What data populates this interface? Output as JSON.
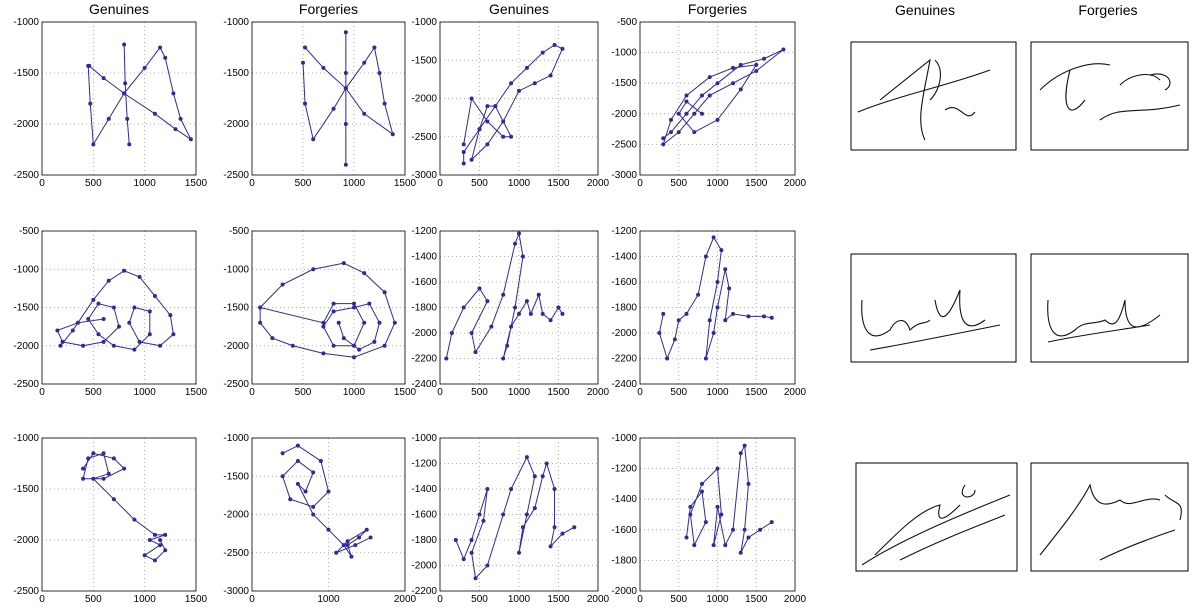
{
  "chart_data": [
    {
      "type": "line",
      "title": "Genuines",
      "xlim": [
        0,
        1500
      ],
      "xticks": [
        0,
        500,
        1000,
        1500
      ],
      "ylim": [
        -2500,
        -1000
      ],
      "yticks": [
        -2500,
        -2000,
        -1500,
        -1000
      ],
      "grid": true,
      "series": [
        {
          "color": "#2b2b9e",
          "x": [
            800,
            810,
            830,
            850,
            null,
            450,
            470,
            500,
            650,
            800,
            1000,
            1150,
            1200,
            1280,
            1350,
            1450,
            1300,
            1100,
            800,
            600,
            460
          ],
          "values": [
            -1220,
            -1600,
            -1950,
            -2200,
            null,
            -1430,
            -1800,
            -2200,
            -1950,
            -1700,
            -1450,
            -1250,
            -1350,
            -1700,
            -1950,
            -2150,
            -2050,
            -1900,
            -1700,
            -1550,
            -1430
          ]
        }
      ]
    },
    {
      "type": "line",
      "title": "Forgeries",
      "xlim": [
        0,
        1500
      ],
      "xticks": [
        0,
        500,
        1000,
        1500
      ],
      "ylim": [
        -2500,
        -1000
      ],
      "yticks": [
        -2500,
        -2000,
        -1500,
        -1000
      ],
      "grid": true,
      "series": [
        {
          "color": "#2b2b9e",
          "x": [
            920,
            920,
            920,
            920,
            null,
            500,
            520,
            600,
            800,
            920,
            1100,
            1200,
            1250,
            1300,
            1380,
            1100,
            920,
            700,
            520
          ],
          "values": [
            -1100,
            -1500,
            -2000,
            -2400,
            null,
            -1400,
            -1800,
            -2150,
            -1850,
            -1650,
            -1400,
            -1250,
            -1500,
            -1800,
            -2100,
            -1900,
            -1650,
            -1450,
            -1250
          ]
        }
      ]
    },
    {
      "type": "line",
      "title": "Genuines",
      "xlim": [
        0,
        2000
      ],
      "xticks": [
        0,
        500,
        1000,
        1500,
        2000
      ],
      "ylim": [
        -3000,
        -1000
      ],
      "yticks": [
        -3000,
        -2500,
        -2000,
        -1500,
        -1000
      ],
      "grid": true,
      "series": [
        {
          "color": "#2b2b9e",
          "x": [
            300,
            300,
            500,
            700,
            900,
            1100,
            1300,
            1450,
            1550,
            1400,
            1200,
            1000,
            800,
            600,
            400,
            500,
            600,
            700,
            900,
            800,
            600,
            400,
            300
          ],
          "values": [
            -2850,
            -2700,
            -2400,
            -2100,
            -1800,
            -1600,
            -1400,
            -1300,
            -1350,
            -1700,
            -1800,
            -1900,
            -2300,
            -2600,
            -2800,
            -2400,
            -2100,
            -2100,
            -2500,
            -2500,
            -2300,
            -2000,
            -2600
          ]
        }
      ]
    },
    {
      "type": "line",
      "title": "Forgeries",
      "xlim": [
        0,
        2000
      ],
      "xticks": [
        0,
        500,
        1000,
        1500,
        2000
      ],
      "ylim": [
        -3000,
        -500
      ],
      "yticks": [
        -3000,
        -2500,
        -2000,
        -1500,
        -1000,
        -500
      ],
      "grid": true,
      "series": [
        {
          "color": "#2b2b9e",
          "x": [
            300,
            400,
            600,
            800,
            1000,
            1300,
            1600,
            1850,
            1500,
            1200,
            900,
            700,
            500,
            300,
            400,
            600,
            900,
            1200,
            1500,
            1300,
            1000,
            700,
            500,
            600,
            800
          ],
          "values": [
            -2400,
            -2300,
            -2000,
            -1700,
            -1500,
            -1200,
            -1100,
            -950,
            -1300,
            -1500,
            -1700,
            -2000,
            -2300,
            -2500,
            -2100,
            -1700,
            -1400,
            -1250,
            -1200,
            -1600,
            -2100,
            -2300,
            -2000,
            -1800,
            -2000
          ]
        }
      ]
    },
    {
      "type": "line",
      "xlim": [
        0,
        1500
      ],
      "xticks": [
        0,
        500,
        1000,
        1500
      ],
      "ylim": [
        -2500,
        -500
      ],
      "yticks": [
        -2500,
        -2000,
        -1500,
        -1000,
        -500
      ],
      "grid": true,
      "series": [
        {
          "color": "#2b2b9e",
          "x": [
            180,
            300,
            500,
            650,
            800,
            950,
            1100,
            1250,
            1280,
            1150,
            950,
            850,
            900,
            1050,
            1050,
            900,
            700,
            550,
            450,
            550,
            700,
            750,
            600,
            400,
            200,
            150,
            350,
            600
          ],
          "values": [
            -2000,
            -1800,
            -1400,
            -1150,
            -1020,
            -1100,
            -1350,
            -1600,
            -1850,
            -2000,
            -1950,
            -1700,
            -1500,
            -1550,
            -1850,
            -2050,
            -2000,
            -1850,
            -1650,
            -1450,
            -1500,
            -1750,
            -1950,
            -2000,
            -1950,
            -1800,
            -1700,
            -1650
          ]
        }
      ]
    },
    {
      "type": "line",
      "xlim": [
        0,
        1500
      ],
      "xticks": [
        0,
        500,
        1000,
        1500
      ],
      "ylim": [
        -2500,
        -500
      ],
      "yticks": [
        -2500,
        -2000,
        -1500,
        -1000,
        -500
      ],
      "grid": true,
      "series": [
        {
          "color": "#2b2b9e",
          "x": [
            80,
            300,
            600,
            900,
            1100,
            1300,
            1400,
            1300,
            1000,
            700,
            400,
            200,
            80,
            80,
            700,
            800,
            1000,
            1100,
            1000,
            800,
            700,
            800,
            1000,
            1150,
            1250,
            1200,
            1050,
            900,
            850
          ],
          "values": [
            -1500,
            -1200,
            -1000,
            -920,
            -1050,
            -1300,
            -1700,
            -2000,
            -2150,
            -2100,
            -2000,
            -1900,
            -1700,
            -1500,
            -1700,
            -1450,
            -1450,
            -1700,
            -2000,
            -2000,
            -1750,
            -1550,
            -1500,
            -1450,
            -1700,
            -1950,
            -2050,
            -1900,
            -1700
          ]
        }
      ]
    },
    {
      "type": "line",
      "xlim": [
        0,
        2000
      ],
      "xticks": [
        0,
        500,
        1000,
        1500,
        2000
      ],
      "ylim": [
        -2400,
        -1200
      ],
      "yticks": [
        -2400,
        -2200,
        -2000,
        -1800,
        -1600,
        -1400,
        -1200
      ],
      "grid": true,
      "series": [
        {
          "color": "#2b2b9e",
          "x": [
            80,
            150,
            300,
            500,
            600,
            400,
            450,
            650,
            800,
            950,
            1000,
            1050,
            950,
            850,
            800,
            900,
            1000,
            1100,
            1150,
            1250,
            1300,
            1400,
            1500,
            1550
          ],
          "values": [
            -2200,
            -2000,
            -1800,
            -1650,
            -1750,
            -2000,
            -2150,
            -1950,
            -1700,
            -1300,
            -1220,
            -1400,
            -1800,
            -2100,
            -2200,
            -1950,
            -1850,
            -1750,
            -1850,
            -1700,
            -1850,
            -1900,
            -1800,
            -1850
          ]
        }
      ]
    },
    {
      "type": "line",
      "xlim": [
        0,
        2000
      ],
      "xticks": [
        0,
        500,
        1000,
        1500,
        2000
      ],
      "ylim": [
        -2400,
        -1200
      ],
      "yticks": [
        -2400,
        -2200,
        -2000,
        -1800,
        -1600,
        -1400,
        -1200
      ],
      "grid": true,
      "series": [
        {
          "color": "#2b2b9e",
          "x": [
            300,
            250,
            350,
            450,
            500,
            600,
            750,
            850,
            950,
            1050,
            1000,
            900,
            850,
            950,
            1000,
            1100,
            1150,
            1100,
            1200,
            1400,
            1600,
            1700
          ],
          "values": [
            -1850,
            -2000,
            -2200,
            -2050,
            -1900,
            -1850,
            -1700,
            -1400,
            -1250,
            -1350,
            -1600,
            -1900,
            -2200,
            -2000,
            -1800,
            -1500,
            -1650,
            -1900,
            -1850,
            -1870,
            -1870,
            -1880
          ]
        }
      ]
    },
    {
      "type": "line",
      "xlim": [
        0,
        1500
      ],
      "xticks": [
        0,
        500,
        1000,
        1500
      ],
      "ylim": [
        -2500,
        -1000
      ],
      "yticks": [
        -2500,
        -2000,
        -1500,
        -1000
      ],
      "grid": true,
      "series": [
        {
          "color": "#2b2b9e",
          "x": [
            400,
            500,
            700,
            800,
            600,
            400,
            450,
            600,
            650,
            500,
            700,
            900,
            1100,
            1200,
            1050,
            1150,
            1000,
            1100,
            1200,
            1150
          ],
          "values": [
            -1300,
            -1150,
            -1200,
            -1300,
            -1400,
            -1400,
            -1200,
            -1150,
            -1350,
            -1400,
            -1600,
            -1800,
            -1950,
            -1950,
            -2000,
            -2050,
            -2150,
            -2200,
            -2100,
            -2000
          ]
        }
      ]
    },
    {
      "type": "line",
      "xlim": [
        0,
        2000
      ],
      "xticks": [
        0,
        1000,
        2000
      ],
      "ylim": [
        -3000,
        -1000
      ],
      "yticks": [
        -3000,
        -2500,
        -2000,
        -1500,
        -1000
      ],
      "grid": true,
      "series": [
        {
          "color": "#2b2b9e",
          "x": [
            400,
            600,
            900,
            1000,
            800,
            500,
            400,
            600,
            800,
            700,
            600,
            800,
            1000,
            1200,
            1300,
            1250,
            1400,
            1500,
            1250,
            1100,
            1350,
            1550
          ],
          "values": [
            -1200,
            -1100,
            -1300,
            -1700,
            -1900,
            -1800,
            -1500,
            -1300,
            -1450,
            -1700,
            -1600,
            -2000,
            -2200,
            -2400,
            -2550,
            -2400,
            -2300,
            -2200,
            -2350,
            -2500,
            -2400,
            -2300
          ]
        }
      ]
    },
    {
      "type": "line",
      "xlim": [
        0,
        2000
      ],
      "xticks": [
        0,
        500,
        1000,
        1500,
        2000
      ],
      "ylim": [
        -2200,
        -1000
      ],
      "yticks": [
        -2200,
        -2000,
        -1800,
        -1600,
        -1400,
        -1200,
        -1000
      ],
      "grid": true,
      "series": [
        {
          "color": "#2b2b9e",
          "x": [
            200,
            300,
            400,
            500,
            600,
            550,
            400,
            450,
            600,
            800,
            900,
            1100,
            1200,
            1100,
            1000,
            1050,
            1200,
            1300,
            1350,
            1450,
            1450,
            1400,
            1550,
            1700
          ],
          "values": [
            -1800,
            -1950,
            -1800,
            -1600,
            -1400,
            -1650,
            -1900,
            -2100,
            -2000,
            -1600,
            -1400,
            -1150,
            -1300,
            -1600,
            -1900,
            -1700,
            -1550,
            -1300,
            -1200,
            -1400,
            -1700,
            -1850,
            -1750,
            -1700
          ]
        }
      ]
    },
    {
      "type": "line",
      "xlim": [
        0,
        2000
      ],
      "xticks": [
        0,
        500,
        1000,
        1500,
        2000
      ],
      "ylim": [
        -2000,
        -1000
      ],
      "yticks": [
        -2000,
        -1800,
        -1600,
        -1400,
        -1200,
        -1000
      ],
      "grid": true,
      "series": [
        {
          "color": "#2b2b9e",
          "x": [
            600,
            650,
            800,
            850,
            700,
            650,
            800,
            1000,
            1050,
            950,
            1000,
            1100,
            1200,
            1300,
            1350,
            1400,
            1350,
            1300,
            1400,
            1550,
            1700
          ],
          "values": [
            -1650,
            -1450,
            -1350,
            -1550,
            -1700,
            -1500,
            -1300,
            -1200,
            -1500,
            -1700,
            -1450,
            -1700,
            -1600,
            -1100,
            -1050,
            -1300,
            -1600,
            -1750,
            -1650,
            -1600,
            -1550
          ]
        }
      ]
    }
  ],
  "signature_panel": {
    "titles": [
      "Genuines",
      "Forgeries"
    ]
  }
}
